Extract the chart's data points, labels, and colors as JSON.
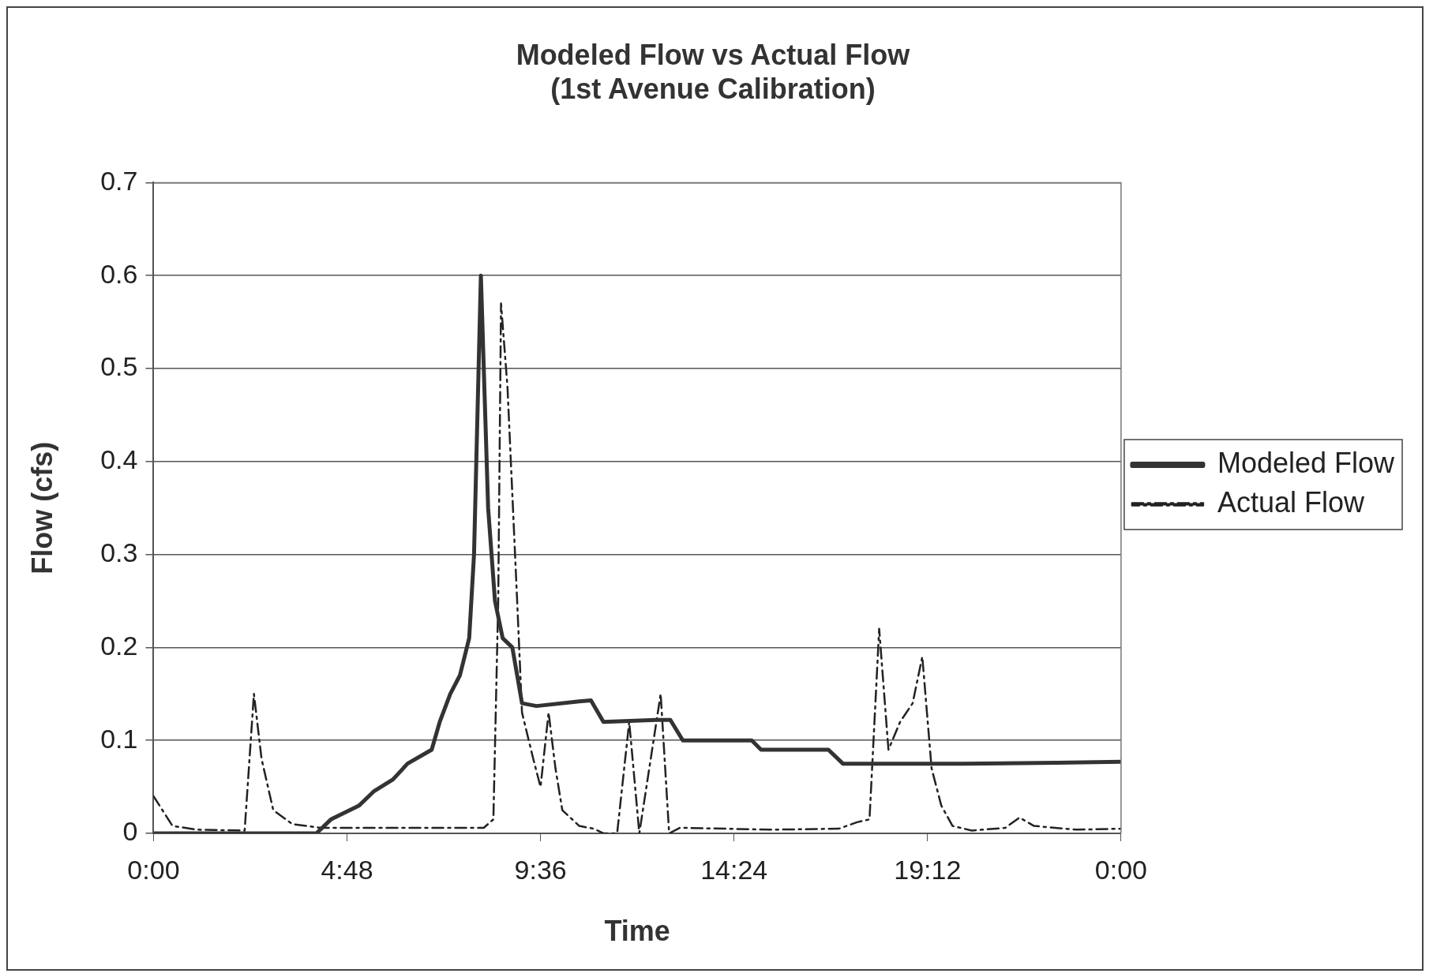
{
  "chart_data": {
    "type": "line",
    "title": "Modeled Flow vs Actual Flow\n(1st Avenue Calibration)",
    "xlabel": "Time",
    "ylabel": "Flow (cfs)",
    "xlim": [
      0,
      24
    ],
    "xticks": [
      {
        "value": 0,
        "label": "0:00"
      },
      {
        "value": 4.8,
        "label": "4:48"
      },
      {
        "value": 9.6,
        "label": "9:36"
      },
      {
        "value": 14.4,
        "label": "14:24"
      },
      {
        "value": 19.2,
        "label": "19:12"
      },
      {
        "value": 24,
        "label": "0:00"
      }
    ],
    "ylim": [
      0,
      0.7
    ],
    "yticks": [
      0,
      0.1,
      0.2,
      0.3,
      0.4,
      0.5,
      0.6,
      0.7
    ],
    "grid": "y",
    "legend": "right",
    "marker": "none",
    "series": [
      {
        "name": "Modeled Flow",
        "color": "#333333",
        "line_style": "solid",
        "x": [
          0,
          4.04,
          4.4,
          5.1,
          5.46,
          5.94,
          6.3,
          6.9,
          7.1,
          7.36,
          7.6,
          7.83,
          7.95,
          8.12,
          8.3,
          8.47,
          8.66,
          8.9,
          9.14,
          9.5,
          10.56,
          10.85,
          11.16,
          12.46,
          12.82,
          13.13,
          14.84,
          15.07,
          16.74,
          17.1,
          20.06,
          22.43,
          24
        ],
        "values": [
          0,
          0,
          0.015,
          0.03,
          0.045,
          0.058,
          0.075,
          0.09,
          0.12,
          0.15,
          0.17,
          0.21,
          0.3,
          0.6,
          0.35,
          0.25,
          0.21,
          0.2,
          0.14,
          0.137,
          0.142,
          0.143,
          0.12,
          0.122,
          0.122,
          0.1,
          0.1,
          0.09,
          0.09,
          0.075,
          0.075,
          0.076,
          0.077
        ]
      },
      {
        "name": "Actual Flow",
        "color": "#222222",
        "line_style": "dashed",
        "x": [
          0,
          0.47,
          1.07,
          2.26,
          2.49,
          2.68,
          2.97,
          3.44,
          4.15,
          5.8,
          8.19,
          8.43,
          8.55,
          8.62,
          8.78,
          9.02,
          9.14,
          9.42,
          9.6,
          9.8,
          9.97,
          10.14,
          10.56,
          10.92,
          11.16,
          11.5,
          11.8,
          12.05,
          12.58,
          12.79,
          13.06,
          15.3,
          17.0,
          17.45,
          17.76,
          18.0,
          18.23,
          18.52,
          18.83,
          19.07,
          19.3,
          19.54,
          19.82,
          20.3,
          21.13,
          21.48,
          21.84,
          22.9,
          24
        ],
        "values": [
          0.04,
          0.008,
          0.004,
          0.003,
          0.15,
          0.08,
          0.025,
          0.01,
          0.006,
          0.006,
          0.006,
          0.015,
          0.25,
          0.57,
          0.48,
          0.25,
          0.13,
          0.08,
          0.05,
          0.13,
          0.07,
          0.025,
          0.008,
          0.005,
          0,
          0,
          0.12,
          0,
          0.15,
          0,
          0.006,
          0.004,
          0.005,
          0.012,
          0.015,
          0.22,
          0.09,
          0.12,
          0.14,
          0.19,
          0.07,
          0.03,
          0.008,
          0.003,
          0.006,
          0.017,
          0.008,
          0.004,
          0.005
        ]
      }
    ]
  }
}
